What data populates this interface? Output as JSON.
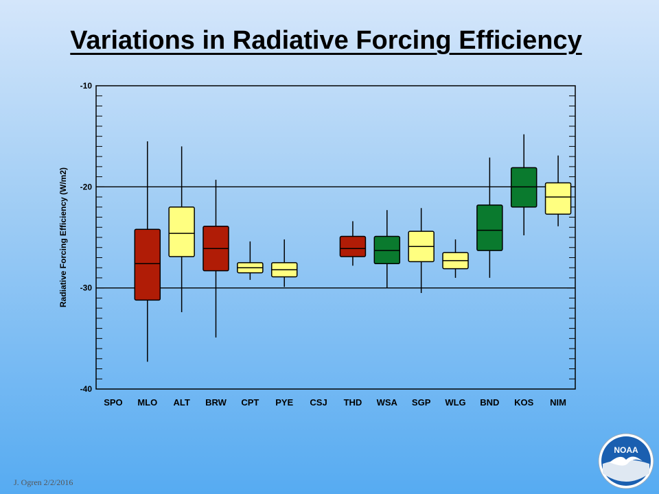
{
  "slide": {
    "title": "Variations in Radiative Forcing Efficiency",
    "footer": "J. Ogren  2/2/2016",
    "logo_text": "NOAA"
  },
  "chart_data": {
    "type": "boxplot",
    "ylabel": "Radiative Forcing Efficiency (W/m2)",
    "xlabel": "",
    "ylim": [
      -40,
      -10
    ],
    "yticks": [
      -10,
      -20,
      -30,
      -40
    ],
    "reference_lines": [
      -20,
      -30
    ],
    "categories": [
      "SPO",
      "MLO",
      "ALT",
      "BRW",
      "CPT",
      "PYE",
      "CSJ",
      "THD",
      "WSA",
      "SGP",
      "WLG",
      "BND",
      "KOS",
      "NIM"
    ],
    "colors": {
      "red": "#b01c06",
      "yellow": "#ffff80",
      "green": "#0a7a2e"
    },
    "boxes": [
      {
        "site": "SPO",
        "present": false
      },
      {
        "site": "MLO",
        "present": true,
        "color": "red",
        "min": -37.3,
        "q1": -31.2,
        "median": -27.6,
        "q3": -24.2,
        "max": -15.5
      },
      {
        "site": "ALT",
        "present": true,
        "color": "yellow",
        "min": -32.4,
        "q1": -26.9,
        "median": -24.6,
        "q3": -22.0,
        "max": -16.0
      },
      {
        "site": "BRW",
        "present": true,
        "color": "red",
        "min": -34.9,
        "q1": -28.3,
        "median": -26.1,
        "q3": -23.9,
        "max": -19.3
      },
      {
        "site": "CPT",
        "present": true,
        "color": "yellow",
        "min": -29.2,
        "q1": -28.5,
        "median": -28.0,
        "q3": -27.5,
        "max": -25.4
      },
      {
        "site": "PYE",
        "present": true,
        "color": "yellow",
        "min": -29.9,
        "q1": -28.9,
        "median": -28.2,
        "q3": -27.5,
        "max": -25.2
      },
      {
        "site": "CSJ",
        "present": false
      },
      {
        "site": "THD",
        "present": true,
        "color": "red",
        "min": -27.8,
        "q1": -26.9,
        "median": -26.1,
        "q3": -24.9,
        "max": -23.4
      },
      {
        "site": "WSA",
        "present": true,
        "color": "green",
        "min": -30.0,
        "q1": -27.6,
        "median": -26.3,
        "q3": -24.9,
        "max": -22.3
      },
      {
        "site": "SGP",
        "present": true,
        "color": "yellow",
        "min": -30.5,
        "q1": -27.4,
        "median": -25.9,
        "q3": -24.4,
        "max": -22.1
      },
      {
        "site": "WLG",
        "present": true,
        "color": "yellow",
        "min": -29.0,
        "q1": -28.1,
        "median": -27.3,
        "q3": -26.5,
        "max": -25.2
      },
      {
        "site": "BND",
        "present": true,
        "color": "green",
        "min": -29.0,
        "q1": -26.3,
        "median": -24.3,
        "q3": -21.8,
        "max": -17.1
      },
      {
        "site": "KOS",
        "present": true,
        "color": "green",
        "min": -24.8,
        "q1": -22.0,
        "median": -20.0,
        "q3": -18.1,
        "max": -14.8
      },
      {
        "site": "NIM",
        "present": true,
        "color": "yellow",
        "min": -23.9,
        "q1": -22.7,
        "median": -21.0,
        "q3": -19.6,
        "max": -16.9
      }
    ]
  }
}
